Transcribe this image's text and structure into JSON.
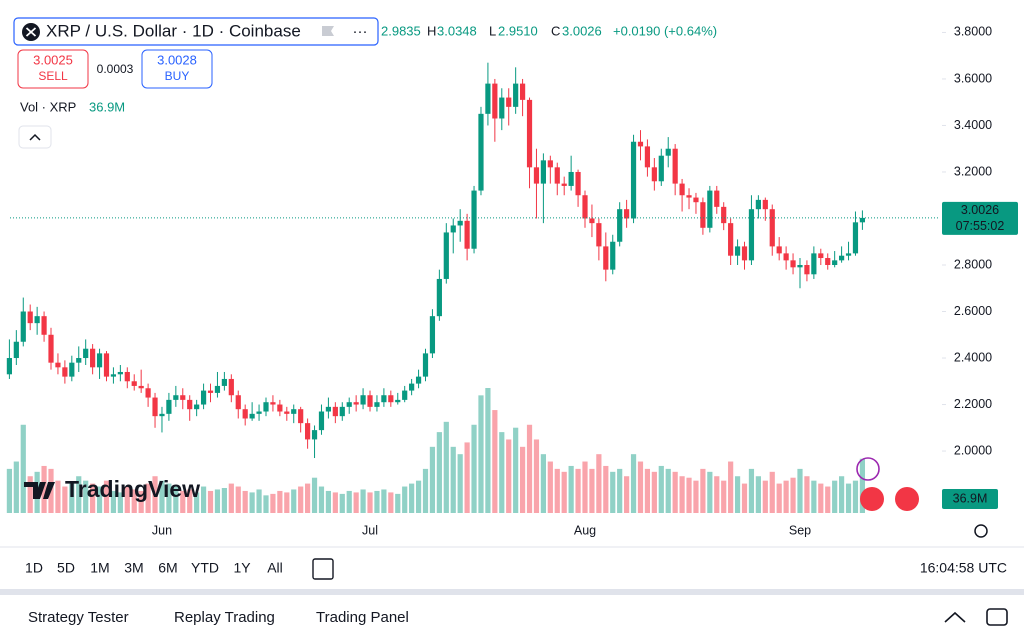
{
  "header": {
    "symbol": "XRP / U.S. Dollar · 1D · Coinbase",
    "open": "2.9835",
    "high_label": "H",
    "high": "3.0348",
    "low_label": "L",
    "low": "2.9510",
    "close_label": "C",
    "close": "3.0026",
    "change": "+0.0190 (+0.64%)",
    "sell_price": "3.0025",
    "sell_label": "SELL",
    "spread": "0.0003",
    "buy_price": "3.0028",
    "buy_label": "BUY",
    "volume_title": "Vol · XRP"
  },
  "chart_data": {
    "type": "candlestick",
    "watermark": "TradingView",
    "price_label": "3.0026",
    "countdown": "07:55:02",
    "volume_label": "36.9M",
    "up_color": "#089981",
    "down_color": "#f23645",
    "ylim": [
      1.725,
      3.875
    ],
    "yticks": [
      {
        "value": 2.0,
        "label": "2.0000"
      },
      {
        "value": 2.2,
        "label": "2.2000"
      },
      {
        "value": 2.4,
        "label": "2.4000"
      },
      {
        "value": 2.6,
        "label": "2.6000"
      },
      {
        "value": 2.8,
        "label": "2.8000"
      },
      {
        "value": 3.0,
        "label": "3.0000"
      },
      {
        "value": 3.2,
        "label": "3.2000"
      },
      {
        "value": 3.4,
        "label": "3.4000"
      },
      {
        "value": 3.6,
        "label": "3.6000"
      },
      {
        "value": 3.8,
        "label": "3.8000"
      }
    ],
    "categories": [
      null,
      null,
      null,
      null,
      null,
      null,
      null,
      null,
      null,
      null,
      null,
      null,
      null,
      null,
      null,
      null,
      null,
      null,
      null,
      null,
      null,
      null,
      "Jun",
      null,
      null,
      null,
      null,
      null,
      null,
      null,
      null,
      null,
      null,
      null,
      null,
      null,
      null,
      null,
      null,
      null,
      null,
      null,
      null,
      null,
      null,
      null,
      null,
      null,
      null,
      null,
      null,
      null,
      "Jul",
      null,
      null,
      null,
      null,
      null,
      null,
      null,
      null,
      null,
      null,
      null,
      null,
      null,
      null,
      null,
      null,
      null,
      null,
      null,
      null,
      null,
      null,
      null,
      null,
      null,
      null,
      null,
      null,
      null,
      null,
      "Aug",
      null,
      null,
      null,
      null,
      null,
      null,
      null,
      null,
      null,
      null,
      null,
      null,
      null,
      null,
      null,
      null,
      null,
      null,
      null,
      null,
      null,
      null,
      null,
      null,
      null,
      null,
      null,
      null,
      null,
      null,
      "Sep",
      null,
      null,
      null,
      null,
      null,
      null,
      null,
      null,
      null
    ],
    "open": [
      2.33,
      2.4,
      2.47,
      2.6,
      2.55,
      2.58,
      2.5,
      2.38,
      2.36,
      2.32,
      2.38,
      2.4,
      2.44,
      2.36,
      2.42,
      2.32,
      2.33,
      2.34,
      2.3,
      2.28,
      2.27,
      2.23,
      2.15,
      2.16,
      2.22,
      2.24,
      2.22,
      2.18,
      2.2,
      2.26,
      2.25,
      2.28,
      2.31,
      2.24,
      2.18,
      2.14,
      2.16,
      2.17,
      2.21,
      2.2,
      2.17,
      2.16,
      2.18,
      2.12,
      2.05,
      2.09,
      2.17,
      2.19,
      2.15,
      2.19,
      2.21,
      2.2,
      2.24,
      2.19,
      2.21,
      2.24,
      2.21,
      2.22,
      2.26,
      2.29,
      2.32,
      2.42,
      2.58,
      2.74,
      2.94,
      2.97,
      2.99,
      2.87,
      3.12,
      3.45,
      3.58,
      3.43,
      3.52,
      3.48,
      3.58,
      3.51,
      3.22,
      3.15,
      3.25,
      3.22,
      3.15,
      3.14,
      3.2,
      3.1,
      3.0,
      2.98,
      2.88,
      2.78,
      2.9,
      3.04,
      3.0,
      3.33,
      3.31,
      3.22,
      3.16,
      3.27,
      3.3,
      3.15,
      3.1,
      3.09,
      3.07,
      2.96,
      3.12,
      3.05,
      2.98,
      2.84,
      2.88,
      2.82,
      3.04,
      3.08,
      3.04,
      2.88,
      2.85,
      2.82,
      2.79,
      2.8,
      2.76,
      2.85,
      2.83,
      2.8,
      2.82,
      2.84,
      2.85,
      2.9835
    ],
    "high": [
      2.48,
      2.52,
      2.66,
      2.63,
      2.62,
      2.6,
      2.53,
      2.42,
      2.39,
      2.41,
      2.45,
      2.48,
      2.46,
      2.44,
      2.43,
      2.36,
      2.37,
      2.36,
      2.33,
      2.35,
      2.29,
      2.25,
      2.19,
      2.25,
      2.28,
      2.27,
      2.24,
      2.22,
      2.29,
      2.29,
      2.34,
      2.34,
      2.33,
      2.26,
      2.2,
      2.21,
      2.2,
      2.23,
      2.24,
      2.22,
      2.19,
      2.2,
      2.19,
      2.14,
      2.11,
      2.2,
      2.23,
      2.21,
      2.21,
      2.23,
      2.24,
      2.27,
      2.26,
      2.24,
      2.27,
      2.26,
      2.25,
      2.28,
      2.31,
      2.35,
      2.44,
      2.61,
      2.78,
      2.98,
      3.0,
      3.04,
      3.02,
      3.14,
      3.48,
      3.67,
      3.6,
      3.56,
      3.56,
      3.65,
      3.6,
      3.52,
      3.3,
      3.28,
      3.27,
      3.24,
      3.18,
      3.27,
      3.21,
      3.12,
      3.06,
      3.0,
      2.94,
      2.93,
      3.07,
      3.08,
      3.36,
      3.38,
      3.34,
      3.26,
      3.3,
      3.35,
      3.32,
      3.17,
      3.13,
      3.11,
      3.09,
      3.14,
      3.14,
      3.07,
      3.0,
      2.91,
      2.9,
      3.1,
      3.1,
      3.09,
      3.06,
      2.92,
      2.88,
      2.85,
      2.83,
      2.82,
      2.88,
      2.87,
      2.85,
      2.86,
      2.88,
      2.9,
      3.03,
      3.0348
    ],
    "low": [
      2.31,
      2.37,
      2.45,
      2.52,
      2.5,
      2.47,
      2.35,
      2.33,
      2.29,
      2.3,
      2.34,
      2.37,
      2.33,
      2.31,
      2.3,
      2.29,
      2.3,
      2.27,
      2.26,
      2.25,
      2.19,
      2.1,
      2.08,
      2.13,
      2.19,
      2.18,
      2.13,
      2.15,
      2.18,
      2.21,
      2.23,
      2.26,
      2.21,
      2.14,
      2.11,
      2.13,
      2.13,
      2.15,
      2.17,
      2.15,
      2.13,
      2.12,
      2.08,
      2.01,
      1.97,
      2.07,
      2.14,
      2.12,
      2.13,
      2.16,
      2.17,
      2.18,
      2.17,
      2.17,
      2.19,
      2.19,
      2.2,
      2.21,
      2.24,
      2.27,
      2.3,
      2.4,
      2.56,
      2.72,
      2.85,
      2.9,
      2.82,
      2.85,
      3.1,
      3.4,
      3.33,
      3.38,
      3.4,
      3.45,
      3.44,
      3.13,
      3.0,
      2.98,
      3.15,
      3.1,
      3.1,
      3.12,
      3.05,
      2.96,
      2.92,
      2.82,
      2.73,
      2.76,
      2.88,
      2.96,
      2.98,
      3.25,
      3.18,
      3.12,
      3.14,
      3.22,
      3.1,
      3.03,
      3.04,
      3.02,
      2.93,
      2.94,
      3.02,
      2.95,
      2.8,
      2.8,
      2.78,
      2.8,
      3.0,
      2.99,
      2.84,
      2.82,
      2.78,
      2.76,
      2.7,
      2.73,
      2.74,
      2.8,
      2.78,
      2.79,
      2.81,
      2.82,
      2.84,
      2.951
    ],
    "close": [
      2.4,
      2.47,
      2.6,
      2.55,
      2.58,
      2.5,
      2.38,
      2.36,
      2.32,
      2.38,
      2.4,
      2.44,
      2.36,
      2.42,
      2.32,
      2.33,
      2.34,
      2.3,
      2.28,
      2.27,
      2.23,
      2.15,
      2.16,
      2.22,
      2.24,
      2.22,
      2.18,
      2.2,
      2.26,
      2.25,
      2.28,
      2.31,
      2.24,
      2.18,
      2.14,
      2.16,
      2.17,
      2.21,
      2.2,
      2.17,
      2.16,
      2.18,
      2.12,
      2.05,
      2.09,
      2.17,
      2.19,
      2.15,
      2.19,
      2.21,
      2.2,
      2.24,
      2.19,
      2.21,
      2.24,
      2.21,
      2.22,
      2.26,
      2.29,
      2.32,
      2.42,
      2.58,
      2.74,
      2.94,
      2.97,
      2.99,
      2.87,
      3.12,
      3.45,
      3.58,
      3.43,
      3.52,
      3.48,
      3.58,
      3.51,
      3.22,
      3.15,
      3.25,
      3.22,
      3.15,
      3.14,
      3.2,
      3.1,
      3.0,
      2.98,
      2.88,
      2.78,
      2.9,
      3.04,
      3.0,
      3.33,
      3.31,
      3.22,
      3.16,
      3.27,
      3.3,
      3.15,
      3.1,
      3.09,
      3.07,
      2.96,
      3.12,
      3.05,
      2.98,
      2.84,
      2.88,
      2.82,
      3.04,
      3.08,
      3.04,
      2.88,
      2.85,
      2.82,
      2.79,
      2.8,
      2.76,
      2.85,
      2.83,
      2.8,
      2.82,
      2.84,
      2.85,
      2.9835,
      3.0026
    ],
    "volume": [
      30,
      35,
      60,
      25,
      28,
      32,
      30,
      22,
      18,
      20,
      25,
      22,
      20,
      18,
      22,
      15,
      14,
      18,
      16,
      15,
      20,
      25,
      22,
      20,
      18,
      15,
      16,
      14,
      18,
      15,
      16,
      17,
      20,
      18,
      15,
      14,
      16,
      12,
      13,
      15,
      14,
      16,
      18,
      20,
      24,
      18,
      15,
      14,
      13,
      15,
      14,
      16,
      14,
      15,
      16,
      14,
      13,
      18,
      20,
      22,
      30,
      45,
      55,
      62,
      45,
      40,
      48,
      60,
      80,
      85,
      70,
      55,
      50,
      58,
      45,
      60,
      50,
      40,
      35,
      30,
      28,
      32,
      30,
      35,
      30,
      40,
      32,
      28,
      30,
      25,
      40,
      35,
      30,
      28,
      32,
      30,
      28,
      25,
      24,
      22,
      30,
      28,
      25,
      22,
      35,
      25,
      20,
      30,
      25,
      22,
      28,
      20,
      22,
      24,
      30,
      25,
      22,
      20,
      18,
      22,
      25,
      20,
      22,
      36.9
    ]
  },
  "toolbar": {
    "ranges": [
      "1D",
      "5D",
      "1M",
      "3M",
      "6M",
      "YTD",
      "1Y",
      "All"
    ],
    "clock": "16:04:58 UTC"
  },
  "footer": {
    "tabs": [
      "Strategy Tester",
      "Replay Trading",
      "Trading Panel"
    ]
  }
}
